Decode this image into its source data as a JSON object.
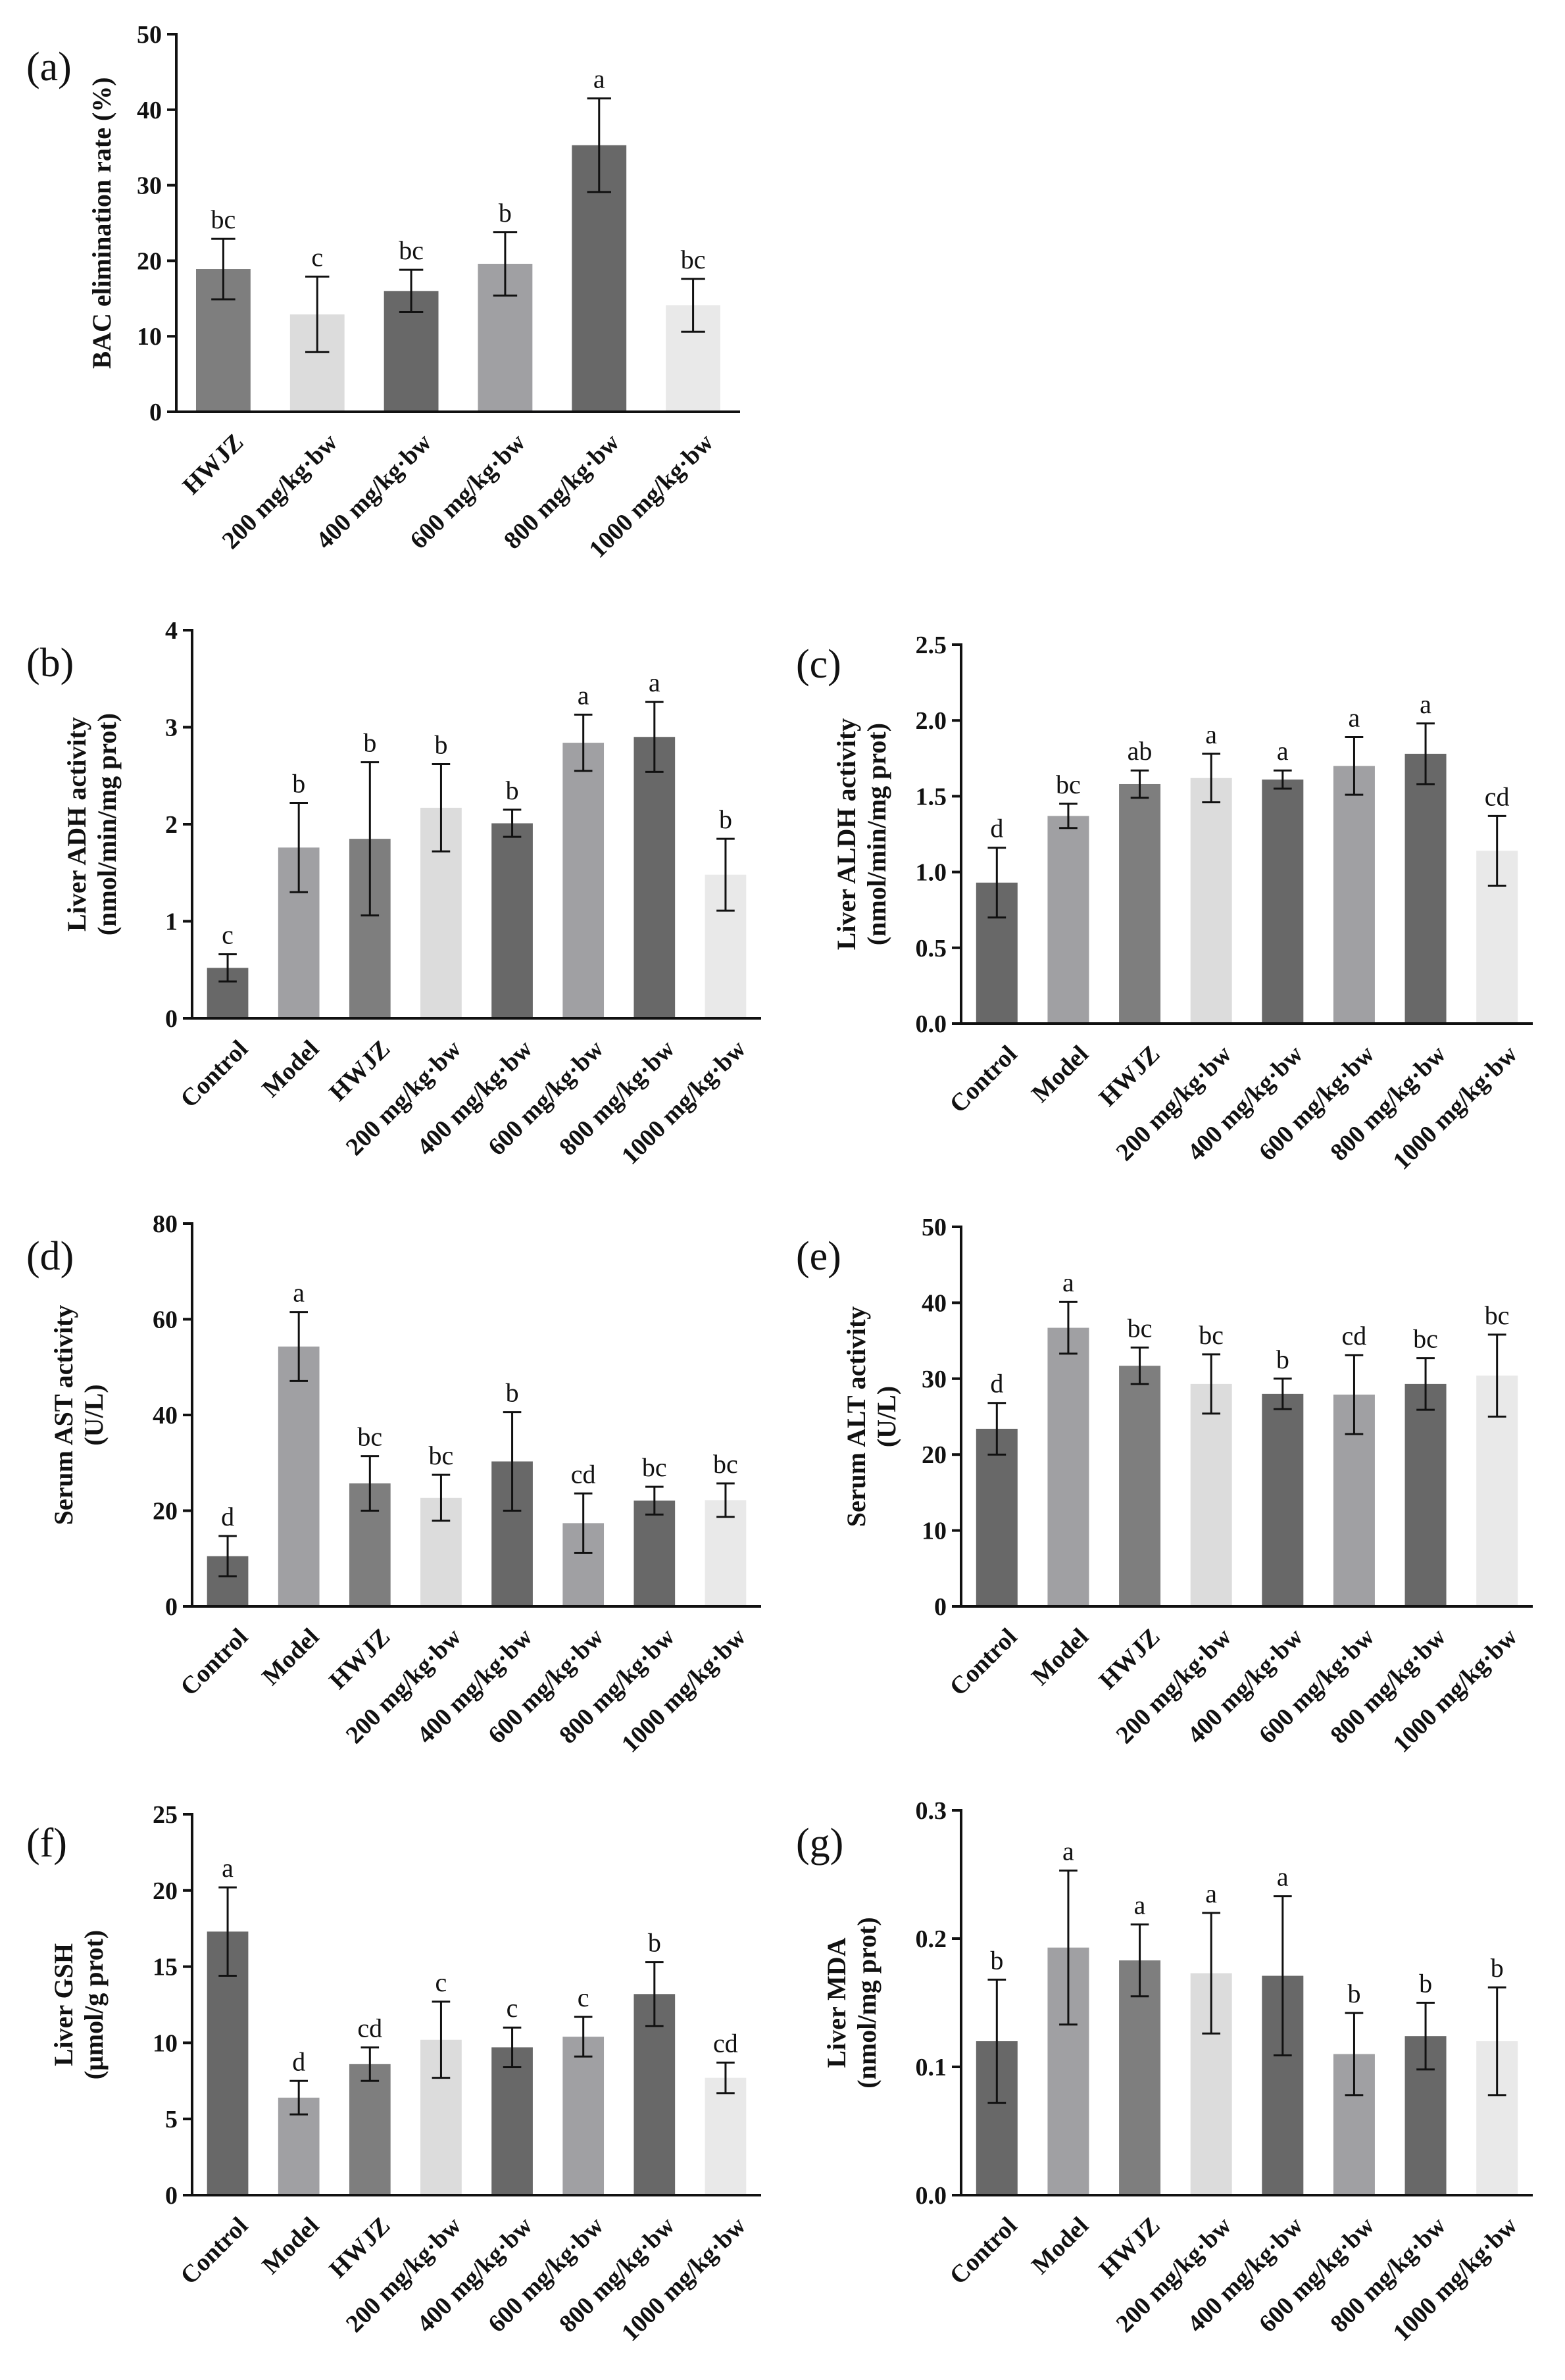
{
  "colors": {
    "dark": "#686868",
    "medium": "#a0a0a3",
    "light": "#dcdcdc",
    "lighter": "#e9e9e9",
    "hwjz": "#7e7e7e"
  },
  "chart_data": [
    {
      "id": "a",
      "panel_label": "(a)",
      "type": "bar",
      "ylabel": [
        "BAC elimination rate (%)"
      ],
      "ylim": [
        0,
        50
      ],
      "yticks": [
        "0",
        "10",
        "20",
        "30",
        "40",
        "50"
      ],
      "categories": [
        "HWJZ",
        "200 mg/kg·bw",
        "400 mg/kg·bw",
        "600 mg/kg·bw",
        "800 mg/kg·bw",
        "1000 mg/kg·bw"
      ],
      "values": [
        18.9,
        12.9,
        16.0,
        19.6,
        35.3,
        14.1
      ],
      "errors": [
        4.0,
        5.0,
        2.8,
        4.2,
        6.2,
        3.5
      ],
      "letters": [
        "bc",
        "c",
        "bc",
        "b",
        "a",
        "bc"
      ],
      "colors": [
        "hwjz",
        "light",
        "dark",
        "medium",
        "dark",
        "lighter"
      ]
    },
    {
      "id": "b",
      "panel_label": "(b)",
      "type": "bar",
      "ylabel": [
        "Liver ADH activity",
        "(nmol/min/mg prot)"
      ],
      "ylim": [
        0,
        4
      ],
      "yticks": [
        "0",
        "1",
        "2",
        "3",
        "4"
      ],
      "categories": [
        "Control",
        "Model",
        "HWJZ",
        "200 mg/kg·bw",
        "400 mg/kg·bw",
        "600 mg/kg·bw",
        "800 mg/kg·bw",
        "1000 mg/kg·bw"
      ],
      "values": [
        0.52,
        1.76,
        1.85,
        2.17,
        2.01,
        2.84,
        2.9,
        1.48
      ],
      "errors": [
        0.14,
        0.46,
        0.79,
        0.45,
        0.14,
        0.29,
        0.36,
        0.37
      ],
      "letters": [
        "c",
        "b",
        "b",
        "b",
        "b",
        "a",
        "a",
        "b"
      ],
      "colors": [
        "dark",
        "medium",
        "hwjz",
        "light",
        "dark",
        "medium",
        "dark",
        "lighter"
      ]
    },
    {
      "id": "c",
      "panel_label": "(c)",
      "type": "bar",
      "ylabel": [
        "Liver ALDH activity",
        "(nmol/min/mg prot)"
      ],
      "ylim": [
        0,
        2.5
      ],
      "yticks": [
        "0.0",
        "0.5",
        "1.0",
        "1.5",
        "2.0",
        "2.5"
      ],
      "categories": [
        "Control",
        "Model",
        "HWJZ",
        "200 mg/kg·bw",
        "400 mg/kg·bw",
        "600 mg/kg·bw",
        "800 mg/kg·bw",
        "1000 mg/kg·bw"
      ],
      "values": [
        0.93,
        1.37,
        1.58,
        1.62,
        1.61,
        1.7,
        1.78,
        1.14
      ],
      "errors": [
        0.23,
        0.08,
        0.09,
        0.16,
        0.06,
        0.19,
        0.2,
        0.23
      ],
      "letters": [
        "d",
        "bc",
        "ab",
        "a",
        "a",
        "a",
        "a",
        "cd"
      ],
      "colors": [
        "dark",
        "medium",
        "hwjz",
        "light",
        "dark",
        "medium",
        "dark",
        "lighter"
      ]
    },
    {
      "id": "d",
      "panel_label": "(d)",
      "type": "bar",
      "ylabel": [
        "Serum AST activity",
        "(U/L)"
      ],
      "ylim": [
        0,
        80
      ],
      "yticks": [
        "0",
        "20",
        "40",
        "60",
        "80"
      ],
      "categories": [
        "Control",
        "Model",
        "HWJZ",
        "200 mg/kg·bw",
        "400 mg/kg·bw",
        "600 mg/kg·bw",
        "800 mg/kg·bw",
        "1000 mg/kg·bw"
      ],
      "values": [
        10.5,
        54.3,
        25.7,
        22.7,
        30.3,
        17.4,
        22.1,
        22.2
      ],
      "errors": [
        4.2,
        7.2,
        5.7,
        4.8,
        10.3,
        6.2,
        2.9,
        3.5
      ],
      "letters": [
        "d",
        "a",
        "bc",
        "bc",
        "b",
        "cd",
        "bc",
        "bc"
      ],
      "colors": [
        "dark",
        "medium",
        "hwjz",
        "light",
        "dark",
        "medium",
        "dark",
        "lighter"
      ]
    },
    {
      "id": "e",
      "panel_label": "(e)",
      "type": "bar",
      "ylabel": [
        "Serum ALT activity",
        "(U/L)"
      ],
      "ylim": [
        0,
        50
      ],
      "yticks": [
        "0",
        "10",
        "20",
        "30",
        "40",
        "50"
      ],
      "categories": [
        "Control",
        "Model",
        "HWJZ",
        "200 mg/kg·bw",
        "400 mg/kg·bw",
        "600 mg/kg·bw",
        "800 mg/kg·bw",
        "1000 mg/kg·bw"
      ],
      "values": [
        23.4,
        36.7,
        31.7,
        29.3,
        28.0,
        27.9,
        29.3,
        30.4
      ],
      "errors": [
        3.4,
        3.4,
        2.4,
        3.9,
        2.0,
        5.2,
        3.4,
        5.4
      ],
      "letters": [
        "d",
        "a",
        "bc",
        "bc",
        "b",
        "cd",
        "bc",
        "bc"
      ],
      "colors": [
        "dark",
        "medium",
        "hwjz",
        "light",
        "dark",
        "medium",
        "dark",
        "lighter"
      ]
    },
    {
      "id": "f",
      "panel_label": "(f)",
      "type": "bar",
      "ylabel": [
        "Liver GSH",
        "(μmol/g prot)"
      ],
      "ylim": [
        0,
        25
      ],
      "yticks": [
        "0",
        "5",
        "10",
        "15",
        "20",
        "25"
      ],
      "categories": [
        "Control",
        "Model",
        "HWJZ",
        "200 mg/kg·bw",
        "400 mg/kg·bw",
        "600 mg/kg·bw",
        "800 mg/kg·bw",
        "1000 mg/kg·bw"
      ],
      "values": [
        17.3,
        6.4,
        8.6,
        10.2,
        9.7,
        10.4,
        13.2,
        7.7
      ],
      "errors": [
        2.9,
        1.1,
        1.1,
        2.5,
        1.3,
        1.3,
        2.1,
        1.0
      ],
      "letters": [
        "a",
        "d",
        "cd",
        "c",
        "c",
        "c",
        "b",
        "cd"
      ],
      "colors": [
        "dark",
        "medium",
        "hwjz",
        "light",
        "dark",
        "medium",
        "dark",
        "lighter"
      ]
    },
    {
      "id": "g",
      "panel_label": "(g)",
      "type": "bar",
      "ylabel": [
        "Liver MDA",
        "(nmol/mg prot)"
      ],
      "ylim": [
        0,
        0.3
      ],
      "yticks": [
        "0.0",
        "0.1",
        "0.2",
        "0.3"
      ],
      "categories": [
        "Control",
        "Model",
        "HWJZ",
        "200 mg/kg·bw",
        "400 mg/kg·bw",
        "600 mg/kg·bw",
        "800 mg/kg·bw",
        "1000 mg/kg·bw"
      ],
      "values": [
        0.12,
        0.193,
        0.183,
        0.173,
        0.171,
        0.11,
        0.124,
        0.12
      ],
      "errors": [
        0.048,
        0.06,
        0.028,
        0.047,
        0.062,
        0.032,
        0.026,
        0.042
      ],
      "letters": [
        "b",
        "a",
        "a",
        "a",
        "a",
        "b",
        "b",
        "b"
      ],
      "colors": [
        "dark",
        "medium",
        "hwjz",
        "light",
        "dark",
        "medium",
        "dark",
        "lighter"
      ]
    }
  ]
}
